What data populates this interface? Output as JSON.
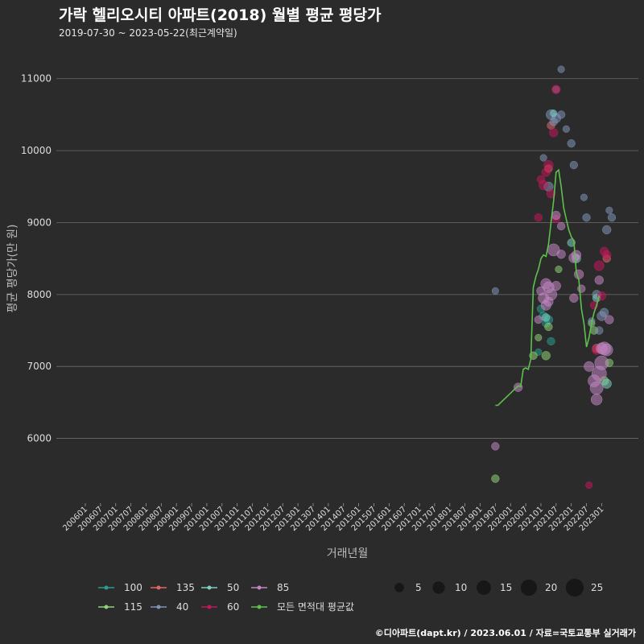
{
  "title": "가락 헬리오시티 아파트(2018) 월별 평균 평당가",
  "subtitle": "2019-07-30 ~ 2023-05-22(최근계약일)",
  "footer": "©디아파트(dapt.kr) / 2023.06.01 / 자료=국토교통부 실거래가",
  "colors": {
    "background": "#2b2b2b",
    "grid": "#6e6e6e",
    "text": "#dddddd",
    "avg_line": "#5dc14c"
  },
  "chart_data": {
    "type": "scatter",
    "xlabel": "거래년월",
    "ylabel": "평균 평당가(만 원)",
    "ylim": [
      5100,
      11400
    ],
    "y_ticks": [
      6000,
      7000,
      8000,
      9000,
      10000,
      11000
    ],
    "x_range": [
      "2006-01",
      "2023-05"
    ],
    "x_ticks": [
      "200601",
      "200607",
      "200701",
      "200707",
      "200801",
      "200807",
      "200901",
      "200907",
      "201001",
      "201007",
      "201101",
      "201107",
      "201201",
      "201207",
      "201301",
      "201307",
      "201401",
      "201407",
      "201501",
      "201507",
      "201601",
      "201607",
      "201701",
      "201707",
      "201801",
      "201807",
      "201901",
      "201907",
      "202001",
      "202007",
      "202101",
      "202107",
      "202201",
      "202207",
      "202301"
    ],
    "series": [
      {
        "name": "100",
        "color": "#2a9d8f",
        "points": [
          [
            "2021-01",
            7800,
            3
          ],
          [
            "2021-02",
            7700,
            4
          ],
          [
            "2021-03",
            7600,
            3
          ],
          [
            "2021-04",
            7650,
            4
          ],
          [
            "2021-05",
            7350,
            3
          ],
          [
            "2020-12",
            7200,
            2
          ]
        ]
      },
      {
        "name": "115",
        "color": "#8fd175",
        "points": [
          [
            "2019-07",
            5440,
            3
          ],
          [
            "2020-10",
            7150,
            3
          ],
          [
            "2021-03",
            7150,
            4
          ],
          [
            "2020-12",
            7400,
            2
          ],
          [
            "2021-04",
            7550,
            3
          ],
          [
            "2023-04",
            7050,
            3
          ],
          [
            "2023-02",
            6800,
            4
          ],
          [
            "2022-10",
            7500,
            3
          ],
          [
            "2021-08",
            8350,
            2
          ],
          [
            "2022-09",
            7600,
            2
          ]
        ]
      },
      {
        "name": "135",
        "color": "#e06666",
        "points": [
          [
            "2021-05",
            10350,
            3
          ],
          [
            "2021-04",
            9750,
            3
          ],
          [
            "2022-11",
            7250,
            4
          ],
          [
            "2023-03",
            8500,
            3
          ]
        ]
      },
      {
        "name": "40",
        "color": "#7f93b4",
        "points": [
          [
            "2019-07",
            8050,
            2
          ],
          [
            "2021-05",
            10500,
            6
          ],
          [
            "2021-07",
            10450,
            5
          ],
          [
            "2021-09",
            10500,
            3
          ],
          [
            "2021-06",
            10400,
            3
          ],
          [
            "2021-11",
            10300,
            2
          ],
          [
            "2022-01",
            10100,
            3
          ],
          [
            "2022-02",
            9800,
            3
          ],
          [
            "2021-04",
            9500,
            5
          ],
          [
            "2022-06",
            9350,
            2
          ],
          [
            "2022-07",
            9070,
            3
          ],
          [
            "2023-04",
            9170,
            2
          ],
          [
            "2023-05",
            9070,
            3
          ],
          [
            "2023-03",
            8900,
            4
          ],
          [
            "2022-11",
            8000,
            4
          ],
          [
            "2023-01",
            7700,
            5
          ],
          [
            "2023-02",
            7750,
            4
          ],
          [
            "2022-09",
            7630,
            2
          ],
          [
            "2021-09",
            11130,
            2
          ],
          [
            "2021-07",
            10850,
            2
          ],
          [
            "2021-02",
            9900,
            2
          ],
          [
            "2022-12",
            7500,
            3
          ]
        ]
      },
      {
        "name": "50",
        "color": "#7ccfc2",
        "points": [
          [
            "2021-06",
            10520,
            2
          ],
          [
            "2022-01",
            8720,
            3
          ],
          [
            "2022-03",
            8500,
            4
          ],
          [
            "2022-11",
            7950,
            3
          ],
          [
            "2023-03",
            6760,
            5
          ],
          [
            "2021-03",
            7680,
            3
          ]
        ]
      },
      {
        "name": "60",
        "color": "#c2185b",
        "points": [
          [
            "2021-07",
            10850,
            4
          ],
          [
            "2021-06",
            10250,
            4
          ],
          [
            "2021-04",
            9800,
            5
          ],
          [
            "2021-03",
            9700,
            4
          ],
          [
            "2021-02",
            9520,
            5
          ],
          [
            "2021-01",
            9600,
            3
          ],
          [
            "2020-12",
            9070,
            3
          ],
          [
            "2021-05",
            9400,
            4
          ],
          [
            "2022-12",
            8400,
            6
          ],
          [
            "2023-02",
            8600,
            4
          ],
          [
            "2023-03",
            8550,
            4
          ],
          [
            "2022-10",
            7850,
            3
          ],
          [
            "2022-11",
            7230,
            5
          ],
          [
            "2021-07",
            9050,
            3
          ],
          [
            "2022-08",
            5350,
            2
          ],
          [
            "2023-01",
            7980,
            4
          ]
        ]
      },
      {
        "name": "85",
        "color": "#c386c4",
        "points": [
          [
            "2019-07",
            5890,
            3
          ],
          [
            "2020-04",
            6710,
            4
          ],
          [
            "2021-03",
            8150,
            7
          ],
          [
            "2021-04",
            8100,
            8
          ],
          [
            "2021-02",
            7950,
            7
          ],
          [
            "2021-05",
            8000,
            9
          ],
          [
            "2021-06",
            8620,
            10
          ],
          [
            "2021-07",
            8120,
            5
          ],
          [
            "2021-09",
            8560,
            4
          ],
          [
            "2022-02",
            8510,
            6
          ],
          [
            "2022-03",
            8550,
            5
          ],
          [
            "2022-04",
            8280,
            5
          ],
          [
            "2022-05",
            8080,
            3
          ],
          [
            "2022-02",
            7950,
            4
          ],
          [
            "2022-08",
            7000,
            6
          ],
          [
            "2022-11",
            6540,
            8
          ],
          [
            "2022-10",
            6800,
            10
          ],
          [
            "2022-11",
            6700,
            12
          ],
          [
            "2022-12",
            6900,
            16
          ],
          [
            "2023-01",
            7050,
            14
          ],
          [
            "2023-02",
            7250,
            12
          ],
          [
            "2023-03",
            7230,
            10
          ],
          [
            "2023-01",
            7250,
            8
          ],
          [
            "2021-03",
            7850,
            6
          ],
          [
            "2021-04",
            7900,
            5
          ],
          [
            "2021-07",
            9100,
            4
          ],
          [
            "2021-09",
            8950,
            3
          ],
          [
            "2021-01",
            8050,
            4
          ],
          [
            "2020-12",
            7650,
            3
          ],
          [
            "2023-04",
            7650,
            4
          ],
          [
            "2022-12",
            8200,
            4
          ]
        ]
      }
    ],
    "average_line": {
      "name": "모든 면적대 평균값",
      "color": "#5dc14c",
      "points": [
        [
          "2019-07",
          6460
        ],
        [
          "2019-08",
          6460
        ],
        [
          "2020-04",
          6730
        ],
        [
          "2020-05",
          6720
        ],
        [
          "2020-06",
          6960
        ],
        [
          "2020-07",
          6980
        ],
        [
          "2020-08",
          6960
        ],
        [
          "2020-09",
          7100
        ],
        [
          "2020-10",
          8100
        ],
        [
          "2020-11",
          8250
        ],
        [
          "2020-12",
          8350
        ],
        [
          "2021-01",
          8500
        ],
        [
          "2021-02",
          8550
        ],
        [
          "2021-03",
          8530
        ],
        [
          "2021-04",
          8700
        ],
        [
          "2021-05",
          9000
        ],
        [
          "2021-06",
          9300
        ],
        [
          "2021-07",
          9700
        ],
        [
          "2021-08",
          9730
        ],
        [
          "2021-09",
          9500
        ],
        [
          "2021-10",
          9200
        ],
        [
          "2021-11",
          9050
        ],
        [
          "2021-12",
          8900
        ],
        [
          "2022-01",
          8800
        ],
        [
          "2022-02",
          8750
        ],
        [
          "2022-03",
          8300
        ],
        [
          "2022-04",
          8200
        ],
        [
          "2022-05",
          7800
        ],
        [
          "2022-06",
          7600
        ],
        [
          "2022-07",
          7270
        ],
        [
          "2022-08",
          7400
        ],
        [
          "2022-09",
          7600
        ],
        [
          "2022-10",
          7750
        ],
        [
          "2022-11",
          7850
        ],
        [
          "2022-12",
          7980
        ]
      ]
    }
  },
  "legend": {
    "items": [
      {
        "label": "100",
        "color": "#2a9d8f"
      },
      {
        "label": "115",
        "color": "#8fd175"
      },
      {
        "label": "135",
        "color": "#e06666"
      },
      {
        "label": "40",
        "color": "#7f93b4"
      },
      {
        "label": "50",
        "color": "#7ccfc2"
      },
      {
        "label": "60",
        "color": "#c2185b"
      },
      {
        "label": "85",
        "color": "#c386c4"
      },
      {
        "label": "모든 면적대 평균값",
        "color": "#5dc14c"
      }
    ],
    "sizes": [
      {
        "label": "5",
        "value": 5
      },
      {
        "label": "10",
        "value": 10
      },
      {
        "label": "15",
        "value": 15
      },
      {
        "label": "20",
        "value": 20
      },
      {
        "label": "25",
        "value": 25
      }
    ]
  }
}
